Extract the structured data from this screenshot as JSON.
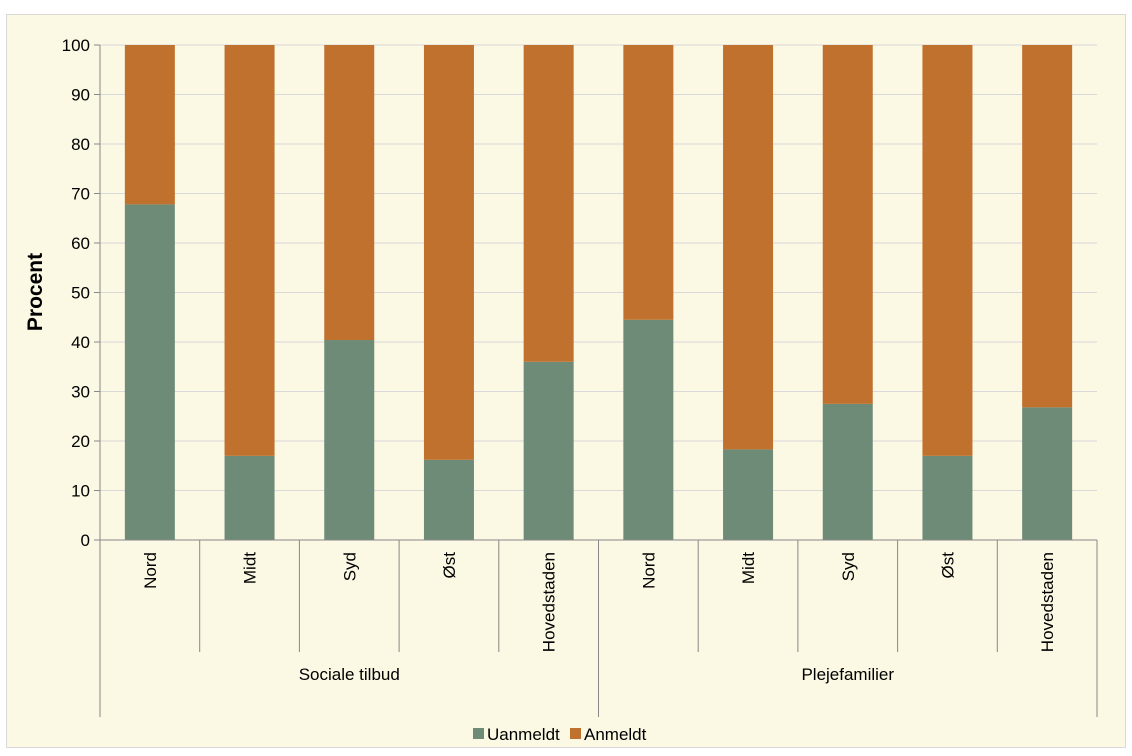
{
  "chart_data": {
    "type": "bar",
    "stacked": true,
    "groups": [
      {
        "label": "Sociale tilbud",
        "categories": [
          "Nord",
          "Midt",
          "Syd",
          "Øst",
          "Hovedstaden"
        ]
      },
      {
        "label": "Plejefamilier",
        "categories": [
          "Nord",
          "Midt",
          "Syd",
          "Øst",
          "Hovedstaden"
        ]
      }
    ],
    "series": [
      {
        "name": "Uanmeldt",
        "color": "#6e8b78",
        "values": [
          67.8,
          17,
          40.4,
          16.2,
          36,
          44.5,
          18.3,
          27.5,
          17,
          26.8
        ]
      },
      {
        "name": "Anmeldt",
        "color": "#c0712e",
        "values": [
          32.2,
          83,
          59.6,
          83.8,
          64,
          55.5,
          81.7,
          72.5,
          83,
          73.2
        ]
      }
    ],
    "ylabel": "Procent",
    "ylim": [
      0,
      100
    ],
    "yticks": [
      0,
      10,
      20,
      30,
      40,
      50,
      60,
      70,
      80,
      90,
      100
    ],
    "grid": true,
    "legend_position": "bottom"
  }
}
